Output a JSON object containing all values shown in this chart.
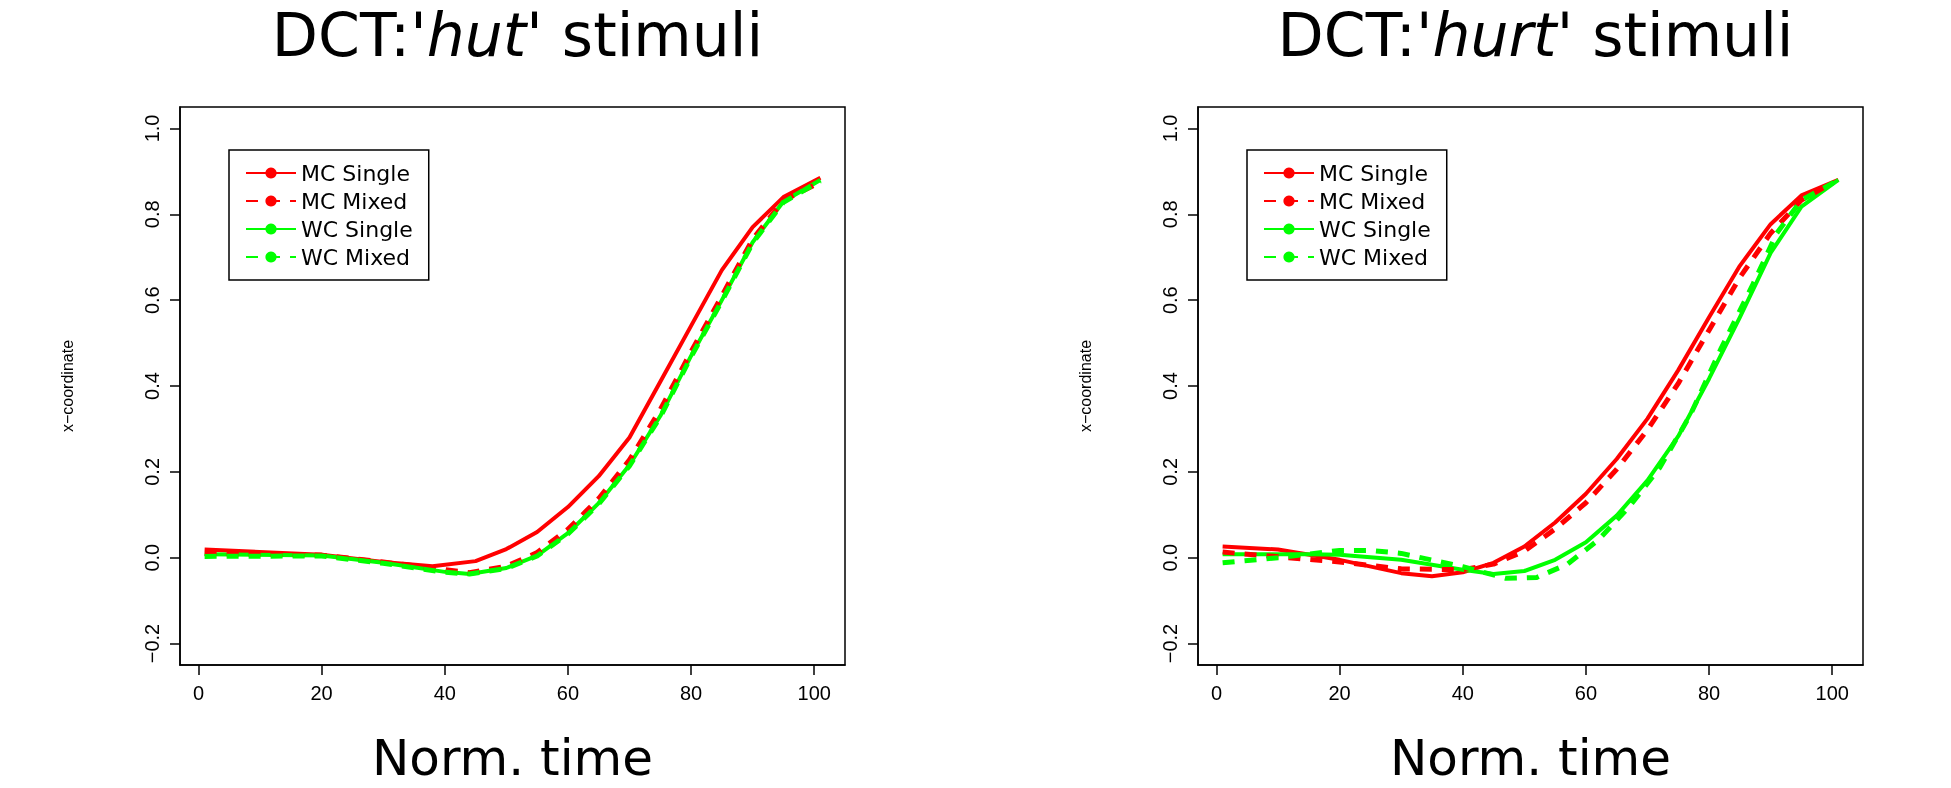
{
  "chart_data": [
    {
      "type": "line",
      "title": "DCT:'hut' stimuli",
      "xlabel": "Norm. time",
      "ylabel": "x−coordinate",
      "xlim": [
        -3,
        105
      ],
      "ylim": [
        -0.25,
        1.05
      ],
      "xticks": [
        0,
        20,
        40,
        60,
        80,
        100
      ],
      "yticks": [
        {
          "value": -0.2,
          "label": "−0.2"
        },
        {
          "value": 0,
          "label": "0.0"
        },
        {
          "value": 0.2,
          "label": "0.2"
        },
        {
          "value": 0.4,
          "label": "0.4"
        },
        {
          "value": 0.6,
          "label": "0.6"
        },
        {
          "value": 0.8,
          "label": "0.8"
        },
        {
          "value": 1,
          "label": "1.0"
        }
      ],
      "legend": "top left",
      "grid": false,
      "marker": "none",
      "series": [
        {
          "name": "MC Single",
          "color": "#ff0000",
          "line_style": "solid",
          "x": [
            1,
            20,
            30,
            38,
            45,
            50,
            55,
            60,
            65,
            70,
            75,
            80,
            85,
            90,
            95,
            101
          ],
          "values": [
            0.019,
            0.007,
            -0.01,
            -0.02,
            -0.008,
            0.02,
            0.06,
            0.118,
            0.19,
            0.28,
            0.41,
            0.54,
            0.67,
            0.77,
            0.84,
            0.885
          ]
        },
        {
          "name": "MC Mixed",
          "color": "#ff0000",
          "line_style": "dashed",
          "x": [
            1,
            20,
            30,
            40,
            44,
            50,
            55,
            60,
            65,
            70,
            75,
            80,
            85,
            90,
            95,
            101
          ],
          "values": [
            0.01,
            0.006,
            -0.01,
            -0.028,
            -0.035,
            -0.02,
            0.012,
            0.066,
            0.138,
            0.228,
            0.345,
            0.48,
            0.61,
            0.742,
            0.832,
            0.875
          ]
        },
        {
          "name": "WC Single",
          "color": "#00ff00",
          "line_style": "solid",
          "x": [
            1,
            20,
            30,
            40,
            44,
            50,
            55,
            60,
            65,
            70,
            75,
            80,
            85,
            90,
            95,
            101
          ],
          "values": [
            0.008,
            0.005,
            -0.012,
            -0.033,
            -0.038,
            -0.024,
            0.005,
            0.057,
            0.127,
            0.216,
            0.33,
            0.47,
            0.6,
            0.735,
            0.83,
            0.88
          ]
        },
        {
          "name": "WC Mixed",
          "color": "#00ff00",
          "line_style": "dashed",
          "x": [
            1,
            20,
            30,
            40,
            44,
            50,
            55,
            60,
            65,
            70,
            75,
            80,
            85,
            90,
            95,
            101
          ],
          "values": [
            0.003,
            0.004,
            -0.013,
            -0.034,
            -0.038,
            -0.025,
            0.004,
            0.055,
            0.125,
            0.214,
            0.328,
            0.468,
            0.598,
            0.733,
            0.828,
            0.878
          ]
        }
      ]
    },
    {
      "type": "line",
      "title": "DCT:'hurt' stimuli",
      "xlabel": "Norm. time",
      "ylabel": "x−coordinate",
      "xlim": [
        -3,
        105
      ],
      "ylim": [
        -0.25,
        1.05
      ],
      "xticks": [
        0,
        20,
        40,
        60,
        80,
        100
      ],
      "yticks": [
        {
          "value": -0.2,
          "label": "−0.2"
        },
        {
          "value": 0,
          "label": "0.0"
        },
        {
          "value": 0.2,
          "label": "0.2"
        },
        {
          "value": 0.4,
          "label": "0.4"
        },
        {
          "value": 0.6,
          "label": "0.6"
        },
        {
          "value": 0.8,
          "label": "0.8"
        },
        {
          "value": 1,
          "label": "1.0"
        }
      ],
      "legend": "top left",
      "grid": false,
      "marker": "none",
      "series": [
        {
          "name": "MC Single",
          "color": "#ff0000",
          "line_style": "solid",
          "x": [
            1,
            10,
            20,
            30,
            35,
            40,
            45,
            50,
            55,
            60,
            65,
            70,
            75,
            80,
            85,
            90,
            95,
            101
          ],
          "values": [
            0.026,
            0.019,
            -0.005,
            -0.036,
            -0.043,
            -0.034,
            -0.012,
            0.026,
            0.082,
            0.149,
            0.23,
            0.324,
            0.437,
            0.56,
            0.68,
            0.777,
            0.844,
            0.88
          ]
        },
        {
          "name": "MC Mixed",
          "color": "#ff0000",
          "line_style": "dashed",
          "x": [
            1,
            20,
            30,
            40,
            45,
            50,
            55,
            60,
            65,
            70,
            75,
            80,
            85,
            90,
            95,
            99
          ],
          "values": [
            0.013,
            -0.01,
            -0.026,
            -0.028,
            -0.015,
            0.015,
            0.067,
            0.128,
            0.206,
            0.298,
            0.406,
            0.53,
            0.653,
            0.756,
            0.833,
            0.865
          ]
        },
        {
          "name": "WC Single",
          "color": "#00ff00",
          "line_style": "solid",
          "x": [
            1,
            15,
            20,
            30,
            40,
            45,
            50,
            55,
            60,
            65,
            70,
            75,
            80,
            85,
            90,
            95,
            101
          ],
          "values": [
            0.008,
            0.008,
            0.007,
            -0.005,
            -0.028,
            -0.038,
            -0.031,
            -0.005,
            0.036,
            0.098,
            0.18,
            0.283,
            0.417,
            0.56,
            0.71,
            0.818,
            0.88
          ]
        },
        {
          "name": "WC Mixed",
          "color": "#00ff00",
          "line_style": "dashed",
          "x": [
            1,
            10,
            20,
            25,
            30,
            40,
            47,
            52,
            57,
            62,
            67,
            72,
            77,
            82,
            87,
            91,
            95,
            101
          ],
          "values": [
            -0.012,
            0,
            0.017,
            0.017,
            0.01,
            -0.021,
            -0.048,
            -0.046,
            -0.015,
            0.041,
            0.118,
            0.21,
            0.334,
            0.489,
            0.633,
            0.756,
            0.833,
            0.88
          ]
        }
      ]
    }
  ]
}
